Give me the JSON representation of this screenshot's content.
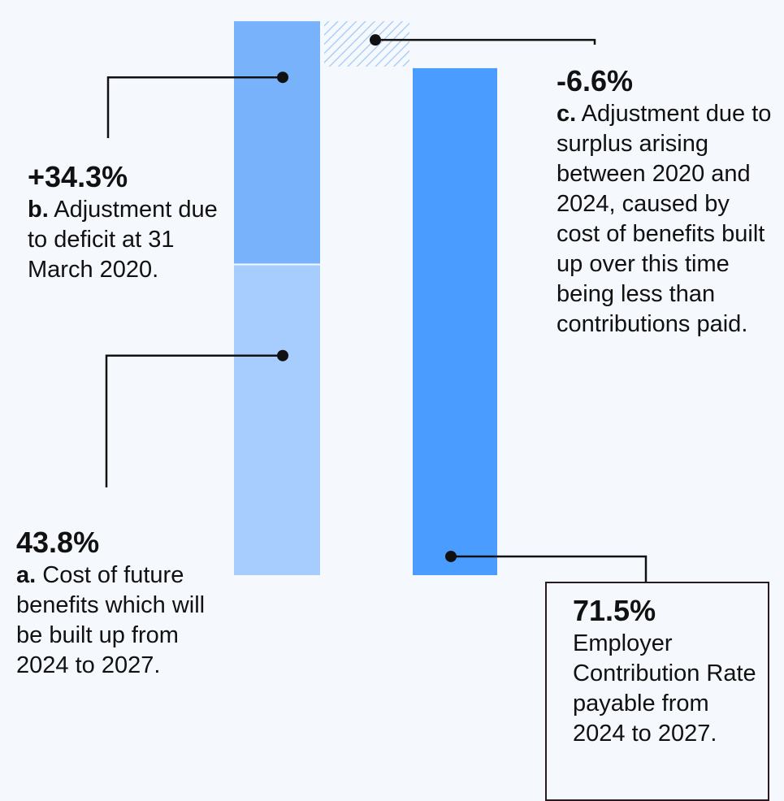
{
  "chart_data": {
    "type": "bar",
    "subtype": "waterfall",
    "title": "",
    "xlabel": "",
    "ylabel": "",
    "ylim": [
      0,
      80.4
    ],
    "colors": {
      "a": "#a6cdfd",
      "b": "#78b2fa",
      "c_hatch": "#9fc8f6",
      "total": "#4a9dff",
      "background": "#f5f8fd",
      "leader": "#111111",
      "box_border": "#2a1a1f"
    },
    "segments": [
      {
        "id": "a",
        "column": 1,
        "base": 0,
        "value": 43.8,
        "value_label": "43.8%",
        "letter": "a.",
        "description": "Cost of future benefits which will be built up from 2024 to 2027."
      },
      {
        "id": "b",
        "column": 1,
        "base": 43.8,
        "value": 34.3,
        "value_label": "+34.3%",
        "letter": "b.",
        "description": "Adjustment due to deficit at 31 March 2020."
      },
      {
        "id": "c",
        "column": 2,
        "base": 71.5,
        "value": 6.6,
        "value_label": "-6.6%",
        "letter": "c.",
        "description": "Adjustment due to surplus arising between 2020 and 2024, caused by cost of benefits built up over this time being less than contributions paid.",
        "hatched": true
      },
      {
        "id": "total",
        "column": 3,
        "base": 0,
        "value": 71.5,
        "value_label": "71.5%",
        "letter": "",
        "description": "Employer Contribution Rate payable from 2024 to 2027."
      }
    ]
  }
}
